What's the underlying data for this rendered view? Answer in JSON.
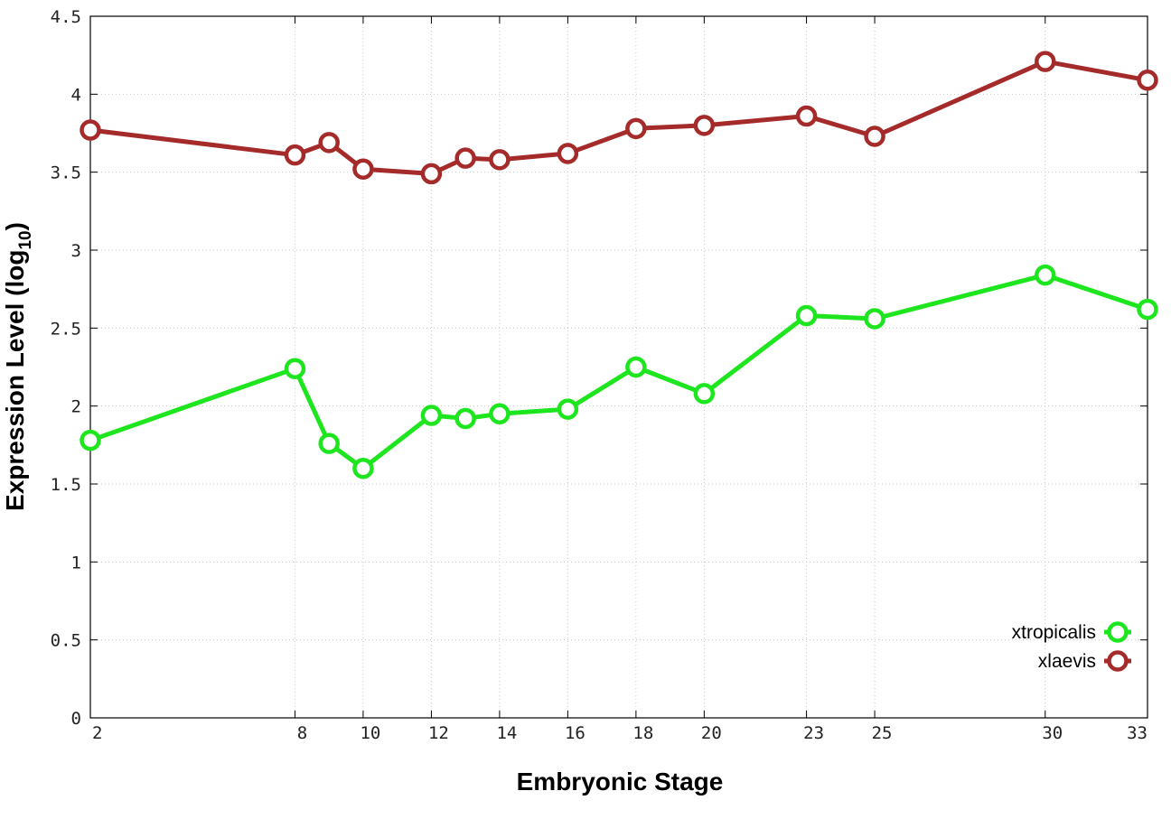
{
  "chart_data": {
    "type": "line",
    "title": "",
    "xlabel": "Embryonic Stage",
    "ylabel_main": "Expression Level (log",
    "ylabel_sub": "10",
    "ylabel_close": ")",
    "x_scale": "linear",
    "xlim": [
      2,
      33
    ],
    "ylim": [
      0,
      4.5
    ],
    "x_ticks": [
      {
        "value": 2,
        "label": "2"
      },
      {
        "value": 8,
        "label": "8"
      },
      {
        "value": 10,
        "label": "10"
      },
      {
        "value": 12,
        "label": "12"
      },
      {
        "value": 14,
        "label": "14"
      },
      {
        "value": 16,
        "label": "16"
      },
      {
        "value": 18,
        "label": "18"
      },
      {
        "value": 20,
        "label": "20"
      },
      {
        "value": 23,
        "label": "23"
      },
      {
        "value": 25,
        "label": "25"
      },
      {
        "value": 30,
        "label": "30"
      },
      {
        "value": 33,
        "label": "33"
      }
    ],
    "y_ticks": [
      {
        "value": 0,
        "label": "0"
      },
      {
        "value": 0.5,
        "label": "0.5"
      },
      {
        "value": 1,
        "label": "1"
      },
      {
        "value": 1.5,
        "label": "1.5"
      },
      {
        "value": 2,
        "label": "2"
      },
      {
        "value": 2.5,
        "label": "2.5"
      },
      {
        "value": 3,
        "label": "3"
      },
      {
        "value": 3.5,
        "label": "3.5"
      },
      {
        "value": 4,
        "label": "4"
      },
      {
        "value": 4.5,
        "label": "4.5"
      }
    ],
    "grid": true,
    "legend_position": "bottom-right",
    "series": [
      {
        "name": "xtropicalis",
        "color": "#1ee61e",
        "marker": "open-circle",
        "x": [
          2,
          8,
          9,
          10,
          12,
          13,
          14,
          16,
          18,
          20,
          23,
          25,
          30,
          33
        ],
        "y": [
          1.78,
          2.24,
          1.76,
          1.6,
          1.94,
          1.92,
          1.95,
          1.98,
          2.25,
          2.08,
          2.58,
          2.56,
          2.84,
          2.62
        ]
      },
      {
        "name": "xlaevis",
        "color": "#a52a2a",
        "marker": "open-circle",
        "x": [
          2,
          8,
          9,
          10,
          12,
          13,
          14,
          16,
          18,
          20,
          23,
          25,
          30,
          33
        ],
        "y": [
          3.77,
          3.61,
          3.69,
          3.52,
          3.49,
          3.59,
          3.58,
          3.62,
          3.78,
          3.8,
          3.86,
          3.73,
          4.21,
          4.09
        ]
      }
    ]
  }
}
